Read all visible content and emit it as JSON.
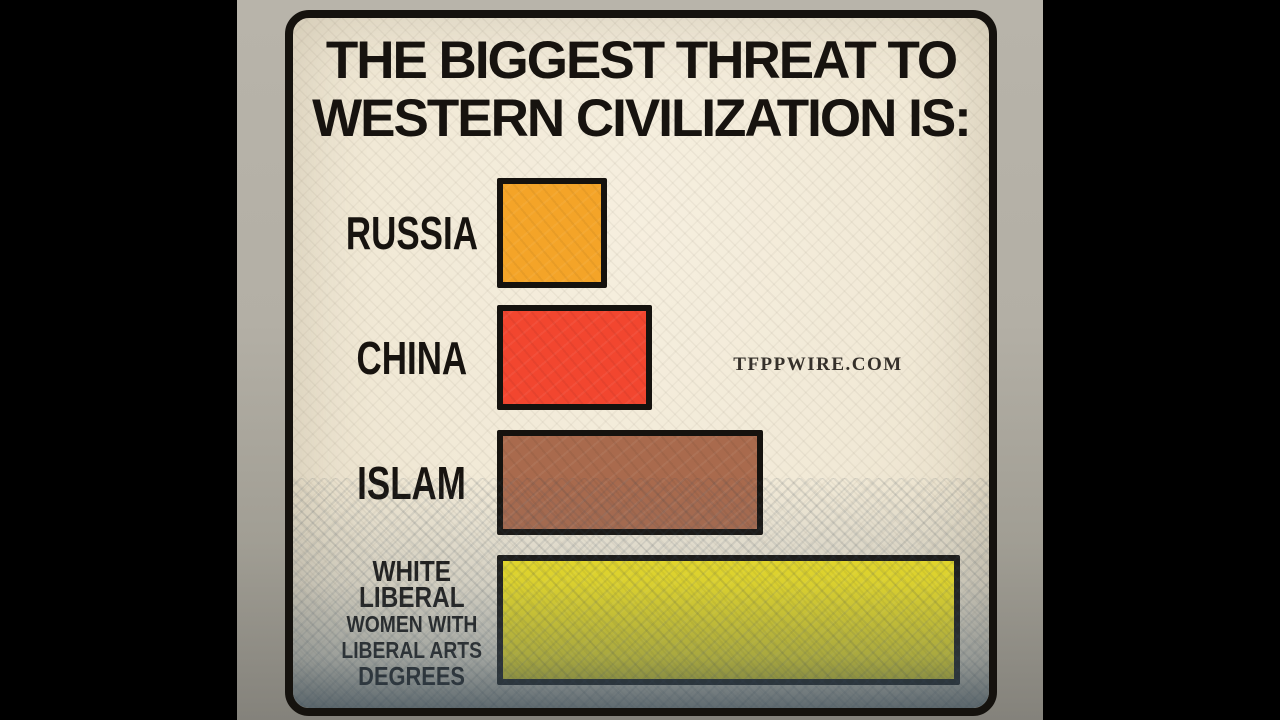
{
  "meme": {
    "title": {
      "line1": "THE BIGGEST THREAT TO",
      "line2": "WESTERN CIVILIZATION IS:"
    },
    "watermark": "TFPPWIRE.COM",
    "bars": [
      {
        "label": "RUSSIA",
        "color": "#f4a428"
      },
      {
        "label": "CHINA",
        "color": "#f2462f"
      },
      {
        "label": "ISLAM",
        "color": "#a96a4d"
      },
      {
        "label_lines": [
          "WHITE",
          "LIBERAL",
          "WOMEN WITH",
          "LIBERAL ARTS",
          "DEGREES"
        ],
        "color": "#f7e71f"
      }
    ],
    "colors": {
      "card_background": "#f1e9d6",
      "card_border": "#15120e",
      "letterbox": "#000000",
      "photo_background": "#b3afa5",
      "text": "#17130f"
    }
  },
  "chart_data": {
    "type": "bar",
    "orientation": "horizontal",
    "title": "THE BIGGEST THREAT TO WESTERN CIVILIZATION IS:",
    "categories": [
      "RUSSIA",
      "CHINA",
      "ISLAM",
      "WHITE LIBERAL WOMEN WITH LIBERAL ARTS DEGREES"
    ],
    "values": [
      0.24,
      0.33,
      0.57,
      1.0
    ],
    "value_meaning": "relative bar length as fraction of the longest bar (no numeric axis shown)",
    "bar_colors": [
      "#f4a428",
      "#f2462f",
      "#a96a4d",
      "#f7e71f"
    ],
    "annotations": [
      "TFPPWIRE.COM"
    ],
    "legend": false,
    "grid": false,
    "axes_labeled": false
  }
}
